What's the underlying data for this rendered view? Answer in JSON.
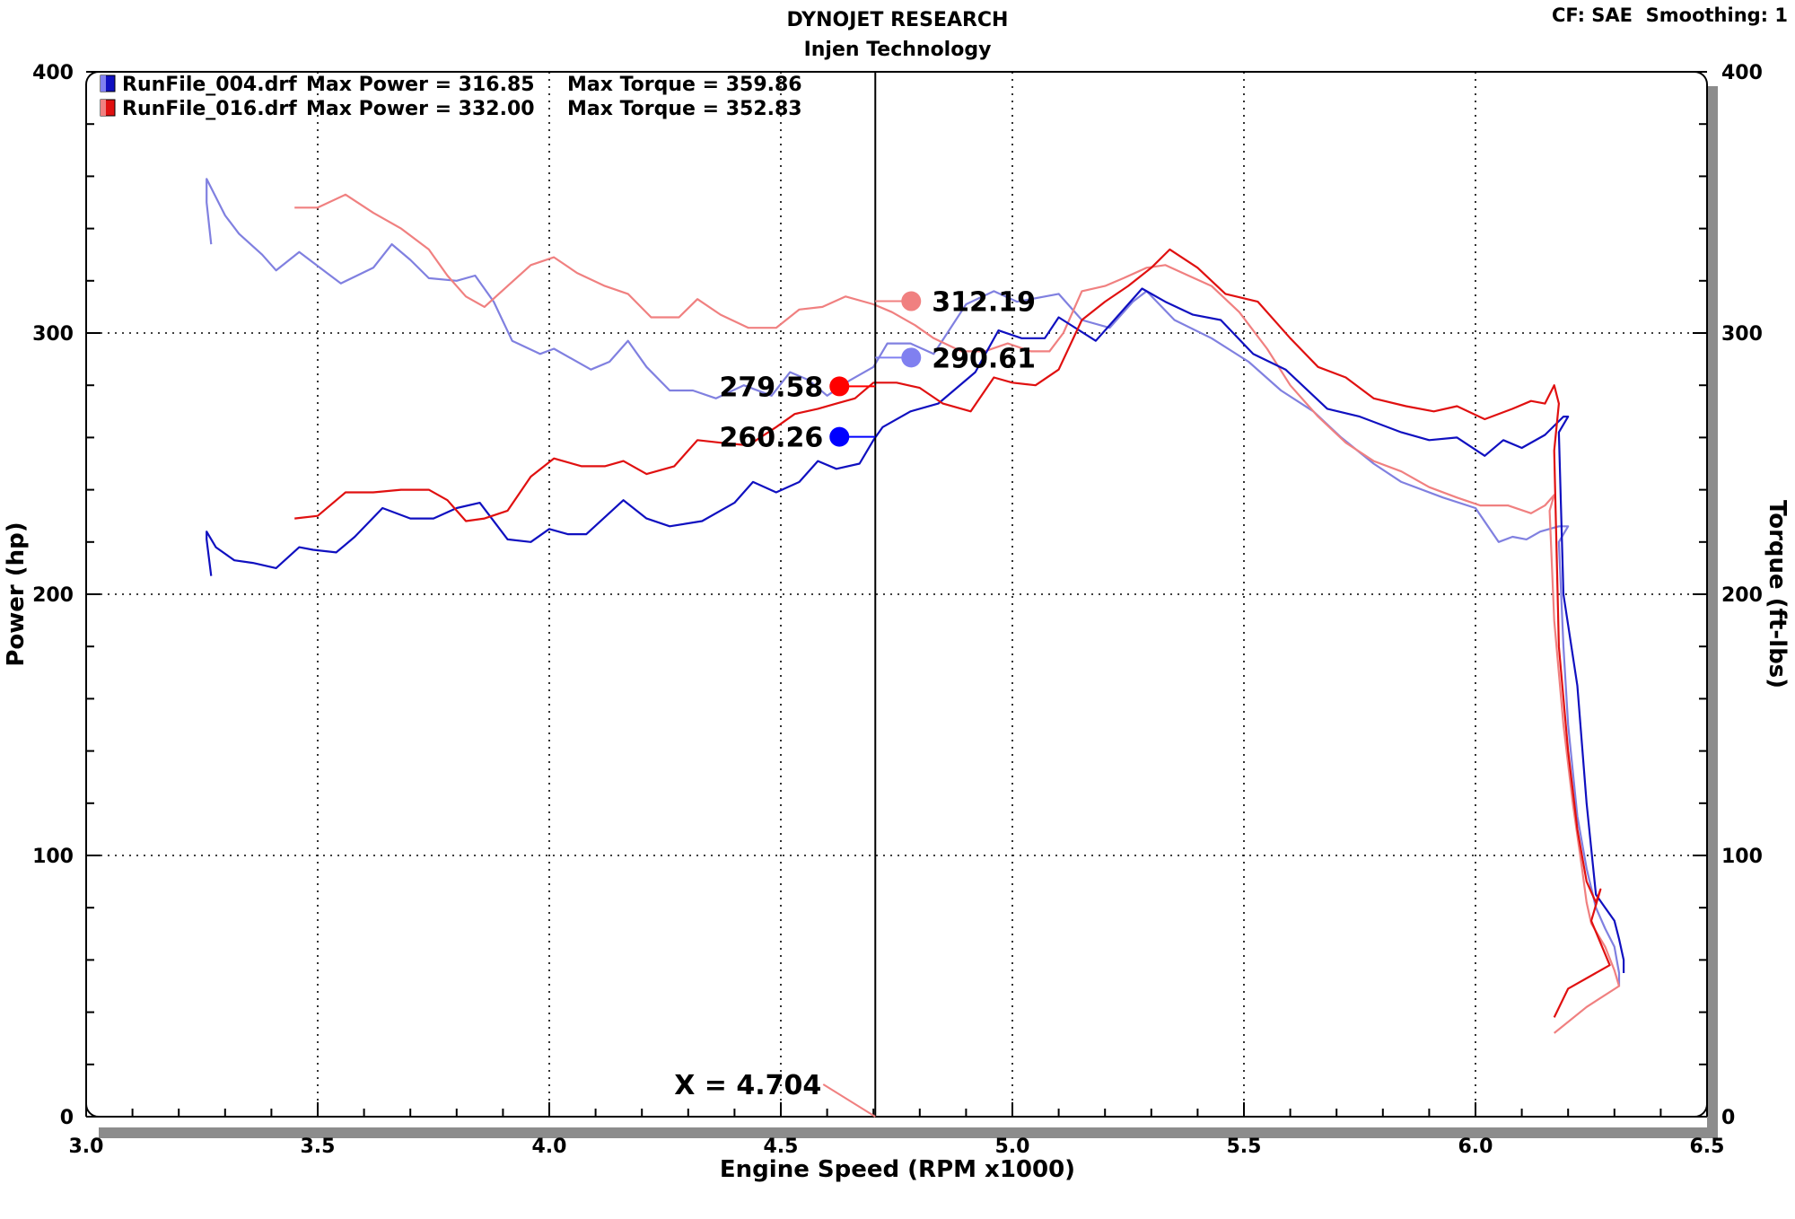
{
  "header": {
    "title": "DYNOJET RESEARCH",
    "subtitle": "Injen Technology",
    "settings": "CF: SAE  Smoothing: 1"
  },
  "chart_data": {
    "type": "line",
    "title": "DYNOJET RESEARCH",
    "subtitle": "Injen Technology",
    "xlabel": "Engine Speed (RPM x1000)",
    "ylabel": "Power (hp)",
    "y2label": "Torque (ft-lbs)",
    "xlim": [
      3.0,
      6.5
    ],
    "ylim": [
      0,
      400
    ],
    "y2lim": [
      0,
      400
    ],
    "xticks": [
      "3.0",
      "3.5",
      "4.0",
      "4.5",
      "5.0",
      "5.5",
      "6.0",
      "6.5"
    ],
    "yticks": [
      "0",
      "100",
      "200",
      "300",
      "400"
    ],
    "y2ticks": [
      "0",
      "100",
      "200",
      "300",
      "400"
    ],
    "grid": true,
    "legend_position": "top-left",
    "legend": [
      {
        "file": "RunFile_004.drf",
        "power_text": "Max Power = 316.85",
        "torque_text": "Max Torque = 359.86",
        "color": "#1010c0"
      },
      {
        "file": "RunFile_016.drf",
        "power_text": "Max Power = 332.00",
        "torque_text": "Max Torque = 352.83",
        "color": "#e01010"
      }
    ],
    "cursor": {
      "x": 4.704,
      "label": "X = 4.704"
    },
    "markers": [
      {
        "label": "312.19",
        "series": "RunFile_016.drf torque",
        "x": 4.704,
        "y": 312.19,
        "color": "#f08080"
      },
      {
        "label": "290.61",
        "series": "RunFile_004.drf torque",
        "x": 4.704,
        "y": 290.61,
        "color": "#8080f0"
      },
      {
        "label": "279.58",
        "series": "RunFile_016.drf power",
        "x": 4.704,
        "y": 279.58,
        "color": "#ff0000"
      },
      {
        "label": "260.26",
        "series": "RunFile_004.drf power",
        "x": 4.704,
        "y": 260.26,
        "color": "#0000ff"
      }
    ],
    "series": [
      {
        "name": "RunFile_004.drf",
        "kind": "power",
        "axis": "left",
        "color": "#1010c0",
        "points": [
          [
            3.27,
            207
          ],
          [
            3.26,
            221
          ],
          [
            3.26,
            224
          ],
          [
            3.28,
            218
          ],
          [
            3.32,
            213
          ],
          [
            3.36,
            212
          ],
          [
            3.41,
            210
          ],
          [
            3.46,
            218
          ],
          [
            3.49,
            217
          ],
          [
            3.54,
            216
          ],
          [
            3.58,
            222
          ],
          [
            3.64,
            233
          ],
          [
            3.7,
            229
          ],
          [
            3.75,
            229
          ],
          [
            3.8,
            233
          ],
          [
            3.85,
            235
          ],
          [
            3.91,
            221
          ],
          [
            3.96,
            220
          ],
          [
            4.0,
            225
          ],
          [
            4.04,
            223
          ],
          [
            4.08,
            223
          ],
          [
            4.16,
            236
          ],
          [
            4.21,
            229
          ],
          [
            4.26,
            226
          ],
          [
            4.33,
            228
          ],
          [
            4.4,
            235
          ],
          [
            4.44,
            243
          ],
          [
            4.49,
            239
          ],
          [
            4.54,
            243
          ],
          [
            4.58,
            251
          ],
          [
            4.62,
            248
          ],
          [
            4.67,
            250
          ],
          [
            4.7,
            259
          ],
          [
            4.72,
            264
          ],
          [
            4.78,
            270
          ],
          [
            4.84,
            273
          ],
          [
            4.92,
            285
          ],
          [
            4.97,
            301
          ],
          [
            5.02,
            298
          ],
          [
            5.07,
            298
          ],
          [
            5.1,
            306
          ],
          [
            5.18,
            297
          ],
          [
            5.22,
            305
          ],
          [
            5.28,
            317
          ],
          [
            5.33,
            312
          ],
          [
            5.39,
            307
          ],
          [
            5.45,
            305
          ],
          [
            5.52,
            292
          ],
          [
            5.59,
            286
          ],
          [
            5.68,
            271
          ],
          [
            5.75,
            268
          ],
          [
            5.84,
            262
          ],
          [
            5.9,
            259
          ],
          [
            5.96,
            260
          ],
          [
            6.02,
            253
          ],
          [
            6.06,
            259
          ],
          [
            6.1,
            256
          ],
          [
            6.15,
            261
          ],
          [
            6.19,
            268
          ],
          [
            6.2,
            268
          ],
          [
            6.18,
            262
          ],
          [
            6.19,
            200
          ],
          [
            6.22,
            165
          ],
          [
            6.24,
            120
          ],
          [
            6.26,
            85
          ],
          [
            6.28,
            80
          ],
          [
            6.3,
            75
          ],
          [
            6.31,
            68
          ],
          [
            6.32,
            60
          ],
          [
            6.32,
            55
          ]
        ]
      },
      {
        "name": "RunFile_004.drf",
        "kind": "torque",
        "axis": "right",
        "color": "#8080e0",
        "points": [
          [
            3.27,
            334
          ],
          [
            3.26,
            350
          ],
          [
            3.26,
            359
          ],
          [
            3.3,
            345
          ],
          [
            3.33,
            338
          ],
          [
            3.38,
            330
          ],
          [
            3.41,
            324
          ],
          [
            3.46,
            331
          ],
          [
            3.52,
            323
          ],
          [
            3.55,
            319
          ],
          [
            3.62,
            325
          ],
          [
            3.66,
            334
          ],
          [
            3.7,
            328
          ],
          [
            3.74,
            321
          ],
          [
            3.8,
            320
          ],
          [
            3.84,
            322
          ],
          [
            3.88,
            312
          ],
          [
            3.92,
            297
          ],
          [
            3.98,
            292
          ],
          [
            4.01,
            294
          ],
          [
            4.09,
            286
          ],
          [
            4.13,
            289
          ],
          [
            4.17,
            297
          ],
          [
            4.21,
            287
          ],
          [
            4.26,
            278
          ],
          [
            4.31,
            278
          ],
          [
            4.36,
            275
          ],
          [
            4.42,
            280
          ],
          [
            4.48,
            276
          ],
          [
            4.52,
            285
          ],
          [
            4.56,
            282
          ],
          [
            4.6,
            276
          ],
          [
            4.65,
            282
          ],
          [
            4.7,
            287
          ],
          [
            4.73,
            296
          ],
          [
            4.78,
            296
          ],
          [
            4.83,
            292
          ],
          [
            4.9,
            311
          ],
          [
            4.96,
            316
          ],
          [
            5.01,
            312
          ],
          [
            5.1,
            315
          ],
          [
            5.15,
            305
          ],
          [
            5.21,
            302
          ],
          [
            5.26,
            312
          ],
          [
            5.29,
            316
          ],
          [
            5.35,
            305
          ],
          [
            5.43,
            298
          ],
          [
            5.51,
            289
          ],
          [
            5.58,
            278
          ],
          [
            5.65,
            270
          ],
          [
            5.71,
            260
          ],
          [
            5.78,
            250
          ],
          [
            5.84,
            243
          ],
          [
            5.93,
            237
          ],
          [
            6.0,
            233
          ],
          [
            6.05,
            220
          ],
          [
            6.08,
            222
          ],
          [
            6.11,
            221
          ],
          [
            6.14,
            224
          ],
          [
            6.18,
            226
          ],
          [
            6.2,
            226
          ],
          [
            6.18,
            220
          ],
          [
            6.19,
            180
          ],
          [
            6.2,
            150
          ],
          [
            6.22,
            115
          ],
          [
            6.24,
            95
          ],
          [
            6.26,
            80
          ],
          [
            6.28,
            72
          ],
          [
            6.3,
            65
          ],
          [
            6.31,
            55
          ],
          [
            6.31,
            50
          ]
        ]
      },
      {
        "name": "RunFile_016.drf",
        "kind": "power",
        "axis": "left",
        "color": "#e01010",
        "points": [
          [
            3.45,
            229
          ],
          [
            3.5,
            230
          ],
          [
            3.56,
            239
          ],
          [
            3.62,
            239
          ],
          [
            3.68,
            240
          ],
          [
            3.74,
            240
          ],
          [
            3.78,
            236
          ],
          [
            3.82,
            228
          ],
          [
            3.86,
            229
          ],
          [
            3.91,
            232
          ],
          [
            3.96,
            245
          ],
          [
            4.01,
            252
          ],
          [
            4.07,
            249
          ],
          [
            4.12,
            249
          ],
          [
            4.16,
            251
          ],
          [
            4.21,
            246
          ],
          [
            4.27,
            249
          ],
          [
            4.32,
            259
          ],
          [
            4.37,
            258
          ],
          [
            4.43,
            257
          ],
          [
            4.49,
            264
          ],
          [
            4.53,
            269
          ],
          [
            4.58,
            271
          ],
          [
            4.62,
            273
          ],
          [
            4.66,
            275
          ],
          [
            4.7,
            281
          ],
          [
            4.75,
            281
          ],
          [
            4.8,
            279
          ],
          [
            4.85,
            273
          ],
          [
            4.91,
            270
          ],
          [
            4.96,
            283
          ],
          [
            5.0,
            281
          ],
          [
            5.05,
            280
          ],
          [
            5.1,
            286
          ],
          [
            5.15,
            305
          ],
          [
            5.2,
            312
          ],
          [
            5.25,
            318
          ],
          [
            5.3,
            325
          ],
          [
            5.34,
            332
          ],
          [
            5.4,
            325
          ],
          [
            5.46,
            315
          ],
          [
            5.53,
            312
          ],
          [
            5.6,
            298
          ],
          [
            5.66,
            287
          ],
          [
            5.72,
            283
          ],
          [
            5.78,
            275
          ],
          [
            5.85,
            272
          ],
          [
            5.91,
            270
          ],
          [
            5.96,
            272
          ],
          [
            6.02,
            267
          ],
          [
            6.08,
            271
          ],
          [
            6.12,
            274
          ],
          [
            6.15,
            273
          ],
          [
            6.17,
            280
          ],
          [
            6.18,
            273
          ],
          [
            6.17,
            255
          ],
          [
            6.18,
            180
          ],
          [
            6.2,
            140
          ],
          [
            6.22,
            110
          ],
          [
            6.24,
            90
          ],
          [
            6.26,
            82
          ],
          [
            6.27,
            87
          ],
          [
            6.25,
            75
          ],
          [
            6.29,
            58
          ],
          [
            6.2,
            49
          ],
          [
            6.17,
            38
          ]
        ]
      },
      {
        "name": "RunFile_016.drf",
        "kind": "torque",
        "axis": "right",
        "color": "#f08080",
        "points": [
          [
            3.45,
            348
          ],
          [
            3.5,
            348
          ],
          [
            3.56,
            353
          ],
          [
            3.62,
            346
          ],
          [
            3.68,
            340
          ],
          [
            3.74,
            332
          ],
          [
            3.78,
            322
          ],
          [
            3.82,
            314
          ],
          [
            3.86,
            310
          ],
          [
            3.91,
            318
          ],
          [
            3.96,
            326
          ],
          [
            4.01,
            329
          ],
          [
            4.06,
            323
          ],
          [
            4.12,
            318
          ],
          [
            4.17,
            315
          ],
          [
            4.22,
            306
          ],
          [
            4.28,
            306
          ],
          [
            4.32,
            313
          ],
          [
            4.37,
            307
          ],
          [
            4.43,
            302
          ],
          [
            4.49,
            302
          ],
          [
            4.54,
            309
          ],
          [
            4.59,
            310
          ],
          [
            4.64,
            314
          ],
          [
            4.7,
            311
          ],
          [
            4.74,
            308
          ],
          [
            4.79,
            303
          ],
          [
            4.83,
            298
          ],
          [
            4.89,
            293
          ],
          [
            4.94,
            293
          ],
          [
            4.99,
            296
          ],
          [
            5.04,
            293
          ],
          [
            5.08,
            293
          ],
          [
            5.11,
            300
          ],
          [
            5.15,
            316
          ],
          [
            5.2,
            318
          ],
          [
            5.24,
            321
          ],
          [
            5.29,
            325
          ],
          [
            5.33,
            326
          ],
          [
            5.38,
            322
          ],
          [
            5.43,
            318
          ],
          [
            5.49,
            308
          ],
          [
            5.55,
            294
          ],
          [
            5.6,
            280
          ],
          [
            5.66,
            268
          ],
          [
            5.72,
            258
          ],
          [
            5.78,
            251
          ],
          [
            5.84,
            247
          ],
          [
            5.9,
            241
          ],
          [
            5.96,
            237
          ],
          [
            6.01,
            234
          ],
          [
            6.07,
            234
          ],
          [
            6.12,
            231
          ],
          [
            6.15,
            234
          ],
          [
            6.17,
            238
          ],
          [
            6.16,
            232
          ],
          [
            6.17,
            190
          ],
          [
            6.19,
            150
          ],
          [
            6.21,
            120
          ],
          [
            6.23,
            95
          ],
          [
            6.24,
            82
          ],
          [
            6.25,
            74
          ],
          [
            6.28,
            65
          ],
          [
            6.3,
            56
          ],
          [
            6.31,
            50
          ],
          [
            6.24,
            42
          ],
          [
            6.17,
            32
          ]
        ]
      }
    ]
  }
}
